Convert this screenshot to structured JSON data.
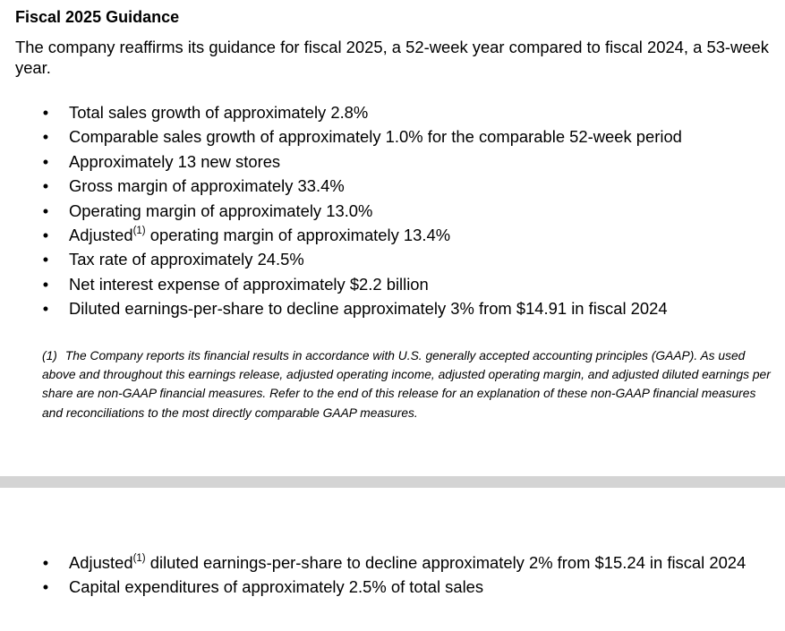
{
  "title": "Fiscal 2025 Guidance",
  "intro": "The company reaffirms its guidance for fiscal 2025, a 52-week year compared to fiscal 2024, a 53-week year.",
  "bullet_glyph": "•",
  "guidance": [
    {
      "text": "Total sales growth of approximately 2.8%"
    },
    {
      "text": "Comparable sales growth of approximately 1.0% for the comparable 52-week period"
    },
    {
      "text": "Approximately 13 new stores"
    },
    {
      "text": "Gross margin of approximately 33.4%"
    },
    {
      "text": "Operating margin of approximately 13.0%"
    },
    {
      "prefix": "Adjusted",
      "superscript": "(1)",
      "text": " operating margin of approximately 13.4%"
    },
    {
      "text": "Tax rate of approximately 24.5%"
    },
    {
      "text": "Net interest expense of approximately $2.2 billion"
    },
    {
      "text": "Diluted earnings-per-share to decline approximately 3% from $14.91 in fiscal 2024"
    }
  ],
  "footnote": {
    "marker": "(1)",
    "text": "The Company reports its financial results in accordance with U.S. generally accepted accounting principles (GAAP). As used above and throughout this earnings release, adjusted operating income, adjusted operating margin, and adjusted diluted earnings per share are non-GAAP financial measures. Refer to the end of this release for an explanation of these non-GAAP financial measures and reconciliations to the most directly comparable GAAP measures."
  },
  "continued_guidance": [
    {
      "prefix": "Adjusted",
      "superscript": "(1)",
      "text": " diluted earnings-per-share to decline approximately 2% from $15.24 in fiscal 2024"
    },
    {
      "text": "Capital expenditures of approximately 2.5% of total sales"
    }
  ]
}
